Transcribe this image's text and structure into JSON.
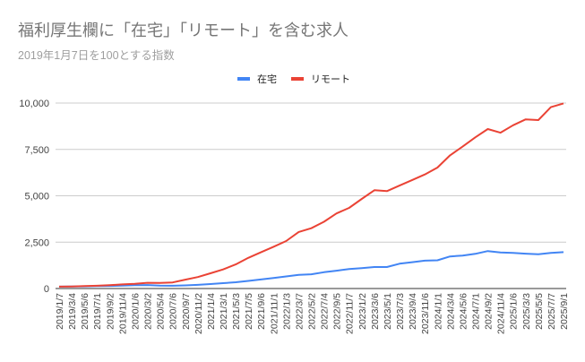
{
  "chart_data": {
    "type": "line",
    "title": "福利厚生欄に「在宅」「リモート」を含む求人",
    "subtitle": "2019年1月7日を100とする指数",
    "xlabel": "",
    "ylabel": "",
    "ylim": [
      0,
      10000
    ],
    "yticks": [
      0,
      2500,
      5000,
      7500,
      10000
    ],
    "ytick_labels": [
      "0",
      "2,500",
      "5,000",
      "7,500",
      "10,000"
    ],
    "grid": true,
    "legend_position": "top",
    "x": [
      "2019/1/7",
      "2019/3/4",
      "2019/5/6",
      "2019/7/1",
      "2019/9/2",
      "2019/11/4",
      "2020/1/6",
      "2020/3/2",
      "2020/5/4",
      "2020/7/6",
      "2020/9/7",
      "2020/11/2",
      "2021/1/4",
      "2021/3/1",
      "2021/5/3",
      "2021/7/5",
      "2021/9/6",
      "2021/11/1",
      "2022/1/3",
      "2022/3/7",
      "2022/5/2",
      "2022/7/4",
      "2022/9/5",
      "2022/11/7",
      "2023/1/2",
      "2023/3/6",
      "2023/5/1",
      "2023/7/3",
      "2023/9/4",
      "2023/11/6",
      "2024/1/1",
      "2024/3/4",
      "2024/5/6",
      "2024/7/1",
      "2024/9/2",
      "2024/11/4",
      "2025/1/6",
      "2025/3/3",
      "2025/5/5",
      "2025/7/7",
      "2025/9/1"
    ],
    "series": [
      {
        "name": "在宅",
        "color": "#4285F4",
        "values": [
          100,
          105,
          115,
          130,
          140,
          160,
          180,
          190,
          160,
          150,
          170,
          200,
          240,
          290,
          340,
          410,
          490,
          570,
          650,
          740,
          770,
          880,
          960,
          1050,
          1100,
          1160,
          1160,
          1340,
          1420,
          1500,
          1520,
          1730,
          1780,
          1870,
          2020,
          1940,
          1920,
          1880,
          1850,
          1920,
          1960
        ]
      },
      {
        "name": "リモート",
        "color": "#EA4335",
        "values": [
          100,
          110,
          130,
          150,
          180,
          220,
          250,
          310,
          300,
          330,
          480,
          620,
          820,
          1030,
          1300,
          1650,
          1950,
          2250,
          2560,
          3050,
          3250,
          3600,
          4050,
          4350,
          4830,
          5300,
          5250,
          5550,
          5850,
          6150,
          6520,
          7180,
          7650,
          8150,
          8600,
          8400,
          8800,
          9120,
          9080,
          9780,
          9980
        ]
      }
    ]
  }
}
